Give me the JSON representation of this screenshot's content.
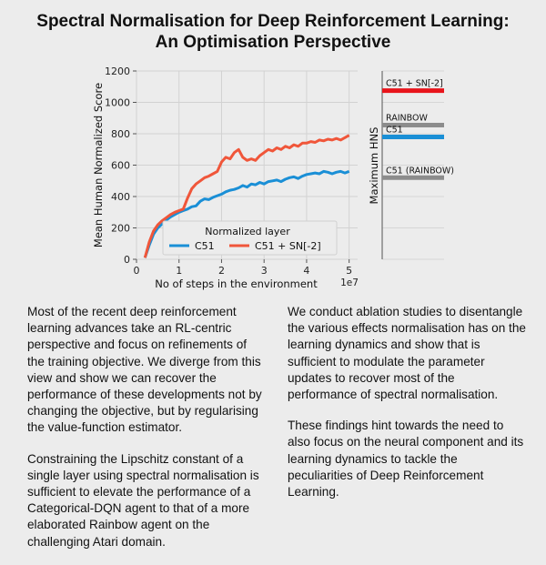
{
  "title": {
    "line1": "Spectral Normalisation for Deep Reinforcement Learning:",
    "line2": "An Optimisation Perspective"
  },
  "chart_data": [
    {
      "type": "line",
      "xlabel": "No of steps in the environment",
      "ylabel": "Mean Human Normalized Score",
      "x_scale_note": "1e7",
      "xlim": [
        0,
        5.2
      ],
      "ylim": [
        0,
        1200
      ],
      "xticks": [
        0,
        1,
        2,
        3,
        4,
        5
      ],
      "yticks": [
        0,
        200,
        400,
        600,
        800,
        1000,
        1200
      ],
      "grid": true,
      "legend": {
        "title": "Normalized layer",
        "placement": "lower-center",
        "entries": [
          "C51",
          "C51 + SN[-2]"
        ]
      },
      "series": [
        {
          "name": "C51",
          "color": "#1a8fd6",
          "x": [
            0.2,
            0.3,
            0.4,
            0.5,
            0.6,
            0.7,
            0.8,
            0.9,
            1.0,
            1.1,
            1.2,
            1.3,
            1.4,
            1.5,
            1.6,
            1.7,
            1.8,
            1.9,
            2.0,
            2.1,
            2.2,
            2.3,
            2.4,
            2.5,
            2.6,
            2.7,
            2.8,
            2.9,
            3.0,
            3.1,
            3.2,
            3.3,
            3.4,
            3.5,
            3.6,
            3.7,
            3.8,
            3.9,
            4.0,
            4.1,
            4.2,
            4.3,
            4.4,
            4.5,
            4.6,
            4.7,
            4.8,
            4.9,
            5.0
          ],
          "y": [
            10,
            90,
            160,
            200,
            225,
            250,
            270,
            285,
            300,
            310,
            320,
            335,
            340,
            370,
            385,
            380,
            395,
            405,
            415,
            430,
            440,
            445,
            455,
            470,
            460,
            480,
            475,
            490,
            480,
            495,
            500,
            505,
            495,
            510,
            520,
            525,
            515,
            530,
            540,
            545,
            550,
            545,
            560,
            555,
            545,
            555,
            560,
            550,
            560
          ]
        },
        {
          "name": "C51 + SN[-2]",
          "color": "#f0563a",
          "x": [
            0.2,
            0.3,
            0.4,
            0.5,
            0.6,
            0.7,
            0.8,
            0.9,
            1.0,
            1.1,
            1.2,
            1.3,
            1.4,
            1.5,
            1.6,
            1.7,
            1.8,
            1.9,
            2.0,
            2.1,
            2.2,
            2.3,
            2.4,
            2.5,
            2.6,
            2.7,
            2.8,
            2.9,
            3.0,
            3.1,
            3.2,
            3.3,
            3.4,
            3.5,
            3.6,
            3.7,
            3.8,
            3.9,
            4.0,
            4.1,
            4.2,
            4.3,
            4.4,
            4.5,
            4.6,
            4.7,
            4.8,
            4.9,
            5.0
          ],
          "y": [
            10,
            110,
            180,
            220,
            245,
            265,
            285,
            300,
            310,
            320,
            390,
            450,
            480,
            500,
            520,
            530,
            545,
            560,
            620,
            650,
            640,
            680,
            700,
            650,
            630,
            640,
            630,
            660,
            680,
            700,
            690,
            710,
            700,
            720,
            710,
            730,
            720,
            740,
            740,
            750,
            745,
            760,
            755,
            765,
            760,
            770,
            760,
            775,
            790
          ]
        }
      ]
    },
    {
      "type": "bar",
      "orientation": "horizontal-markers",
      "ylabel": "Maximum HNS",
      "ylim": [
        0,
        1200
      ],
      "categories": [
        "C51 + SN[-2]",
        "RAINBOW",
        "C51",
        "C51 (RAINBOW)"
      ],
      "values": [
        1075,
        855,
        780,
        520
      ],
      "colors": [
        "#e8141b",
        "#8c8c8c",
        "#1a8fd6",
        "#8c8c8c"
      ]
    }
  ],
  "paragraphs": {
    "left": [
      "Most of the recent deep reinforcement learning advances take an RL-centric perspective and focus on refinements of the training objective. We diverge from this view and show we can recover the performance of these developments not by changing the objective, but by regularising the value-function estimator.",
      "Constraining the Lipschitz constant of a single layer using spectral normalisation is sufficient to elevate the performance of a Categorical-DQN agent to that of a more elaborated Rainbow agent on the challenging Atari domain."
    ],
    "right": [
      "We conduct ablation studies to disentangle the various effects normalisation has on the learning dynamics and show that is sufficient to modulate the parameter updates to recover most of the performance of spectral normalisation.",
      "These findings hint towards the need to also focus on the neural component and its learning dynamics to tackle the peculiarities of Deep Reinforcement Learning."
    ]
  }
}
